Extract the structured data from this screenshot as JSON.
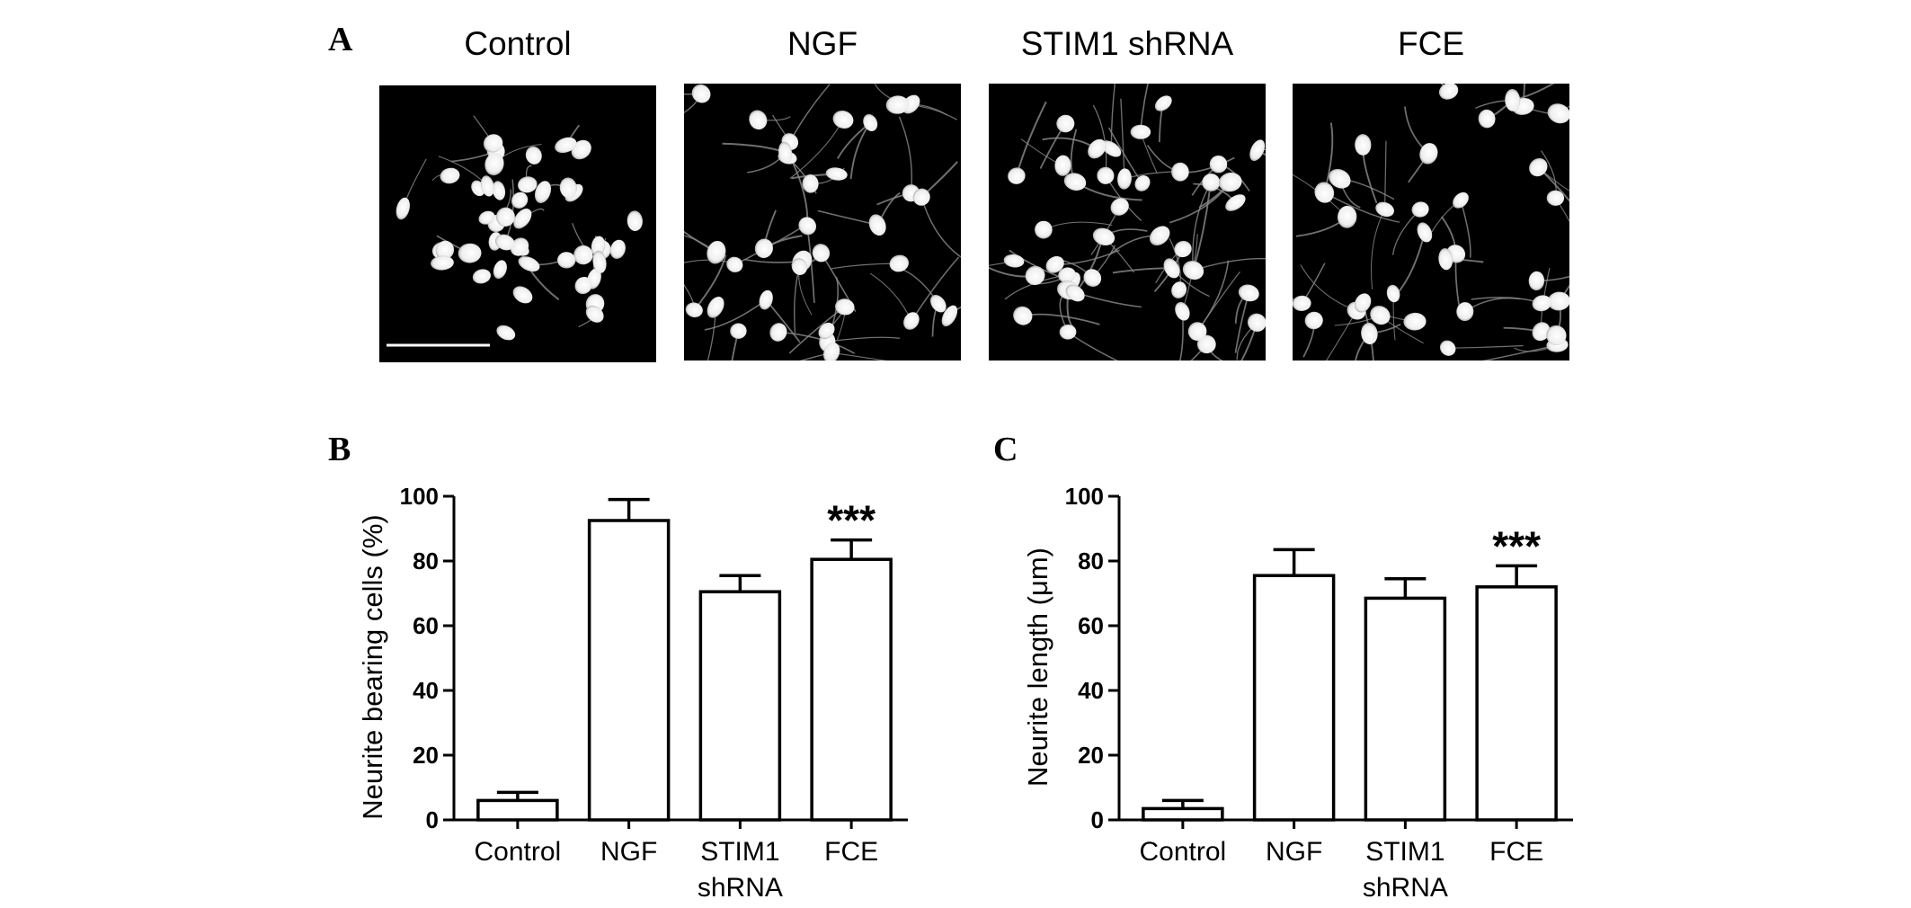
{
  "panels": {
    "a_letter": "A",
    "b_letter": "B",
    "c_letter": "C"
  },
  "micrographs": [
    {
      "title": "Control",
      "has_scale_bar": true,
      "cell_count": 44,
      "density": "clustered"
    },
    {
      "title": "NGF",
      "has_scale_bar": false,
      "cell_count": 34,
      "density": "spread"
    },
    {
      "title": "STIM1 shRNA",
      "has_scale_bar": false,
      "cell_count": 40,
      "density": "spread"
    },
    {
      "title": "FCE",
      "has_scale_bar": false,
      "cell_count": 34,
      "density": "spread"
    }
  ],
  "colors": {
    "bar_fill": "#ffffff",
    "bar_stroke": "#000000",
    "micrograph_bg": "#000000",
    "cell": "#ffffff"
  },
  "chart_data": [
    {
      "id": "B",
      "type": "bar",
      "categories": [
        [
          "Control"
        ],
        [
          "NGF"
        ],
        [
          "STIM1",
          "shRNA"
        ],
        [
          "FCE"
        ]
      ],
      "values": [
        6,
        92.5,
        70.5,
        80.5
      ],
      "errors": [
        2.5,
        6.5,
        5,
        6
      ],
      "annotations": [
        {
          "category_index": 3,
          "text": "***"
        }
      ],
      "ylabel": "Neurite bearing cells (%)",
      "ylim": [
        0,
        100
      ],
      "yticks": [
        0,
        20,
        40,
        60,
        80,
        100
      ],
      "grid": false
    },
    {
      "id": "C",
      "type": "bar",
      "categories": [
        [
          "Control"
        ],
        [
          "NGF"
        ],
        [
          "STIM1",
          "shRNA"
        ],
        [
          "FCE"
        ]
      ],
      "values": [
        3.5,
        75.5,
        68.5,
        72
      ],
      "errors": [
        2.5,
        8,
        6,
        6.5
      ],
      "annotations": [
        {
          "category_index": 3,
          "text": "***"
        }
      ],
      "ylabel": "Neurite length (μm)",
      "ylim": [
        0,
        100
      ],
      "yticks": [
        0,
        20,
        40,
        60,
        80,
        100
      ],
      "grid": false
    }
  ]
}
